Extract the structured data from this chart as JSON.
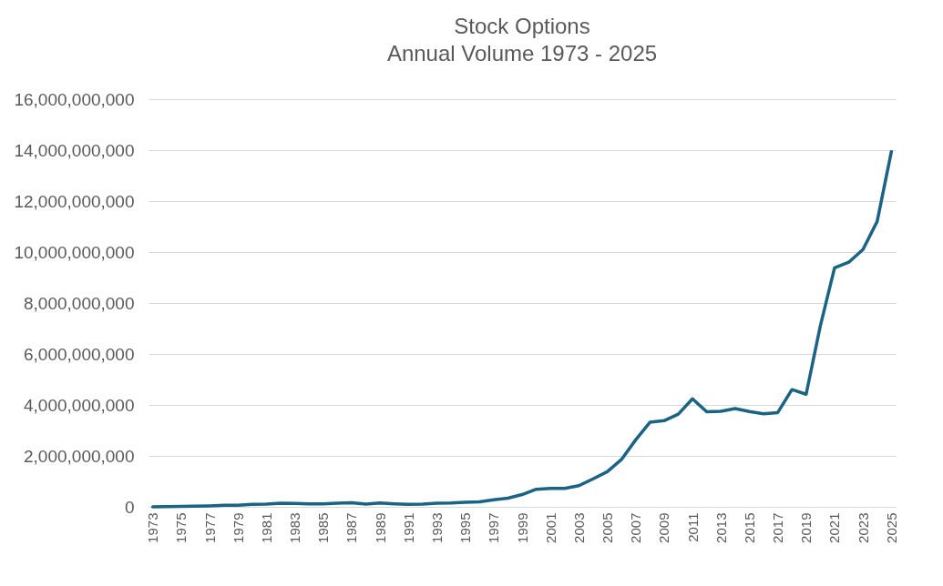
{
  "chart_data": {
    "type": "line",
    "title": "Stock Options",
    "subtitle": "Annual Volume 1973 - 2025",
    "categories": [
      "1973",
      null,
      "1975",
      null,
      "1977",
      null,
      "1979",
      null,
      "1981",
      null,
      "1983",
      null,
      "1985",
      null,
      "1987",
      null,
      "1989",
      null,
      "1991",
      null,
      "1993",
      null,
      "1995",
      null,
      "1997",
      null,
      "1999",
      null,
      "2001",
      null,
      "2003",
      null,
      "2005",
      null,
      "2007",
      null,
      "2009",
      null,
      "2011",
      null,
      "2013",
      null,
      "2015",
      null,
      "2017",
      null,
      "2019",
      null,
      "2021",
      null,
      "2023",
      null,
      "2025"
    ],
    "series": [
      {
        "color": "#1b6384",
        "values": [
          0,
          10000000,
          20000000,
          30000000,
          40000000,
          60000000,
          60000000,
          100000000,
          110000000,
          140000000,
          130000000,
          120000000,
          120000000,
          140000000,
          160000000,
          110000000,
          150000000,
          120000000,
          100000000,
          110000000,
          140000000,
          150000000,
          180000000,
          200000000,
          280000000,
          340000000,
          480000000,
          690000000,
          720000000,
          720000000,
          830000000,
          1100000000,
          1380000000,
          1860000000,
          2630000000,
          3320000000,
          3380000000,
          3640000000,
          4240000000,
          3730000000,
          3750000000,
          3860000000,
          3740000000,
          3650000000,
          3700000000,
          4600000000,
          4420000000,
          7100000000,
          9380000000,
          9600000000,
          10100000000,
          11200000000,
          13940000000
        ]
      }
    ],
    "ylim": [
      0,
      16000000000
    ],
    "yticks": [
      0,
      {
        "value": 2000000000,
        "label": "2,000,000,000"
      },
      {
        "value": 4000000000,
        "label": "4,000,000,000"
      },
      {
        "value": 6000000000,
        "label": "6,000,000,000"
      },
      {
        "value": 8000000000,
        "label": "8,000,000,000"
      },
      {
        "value": 10000000000,
        "label": "10,000,000,000"
      },
      {
        "value": 12000000000,
        "label": "12,000,000,000"
      },
      {
        "value": 14000000000,
        "label": "14,000,000,000"
      },
      {
        "value": 16000000000,
        "label": "16,000,000,000"
      }
    ],
    "grid": "y",
    "line_style": "solid",
    "marker": "none"
  }
}
